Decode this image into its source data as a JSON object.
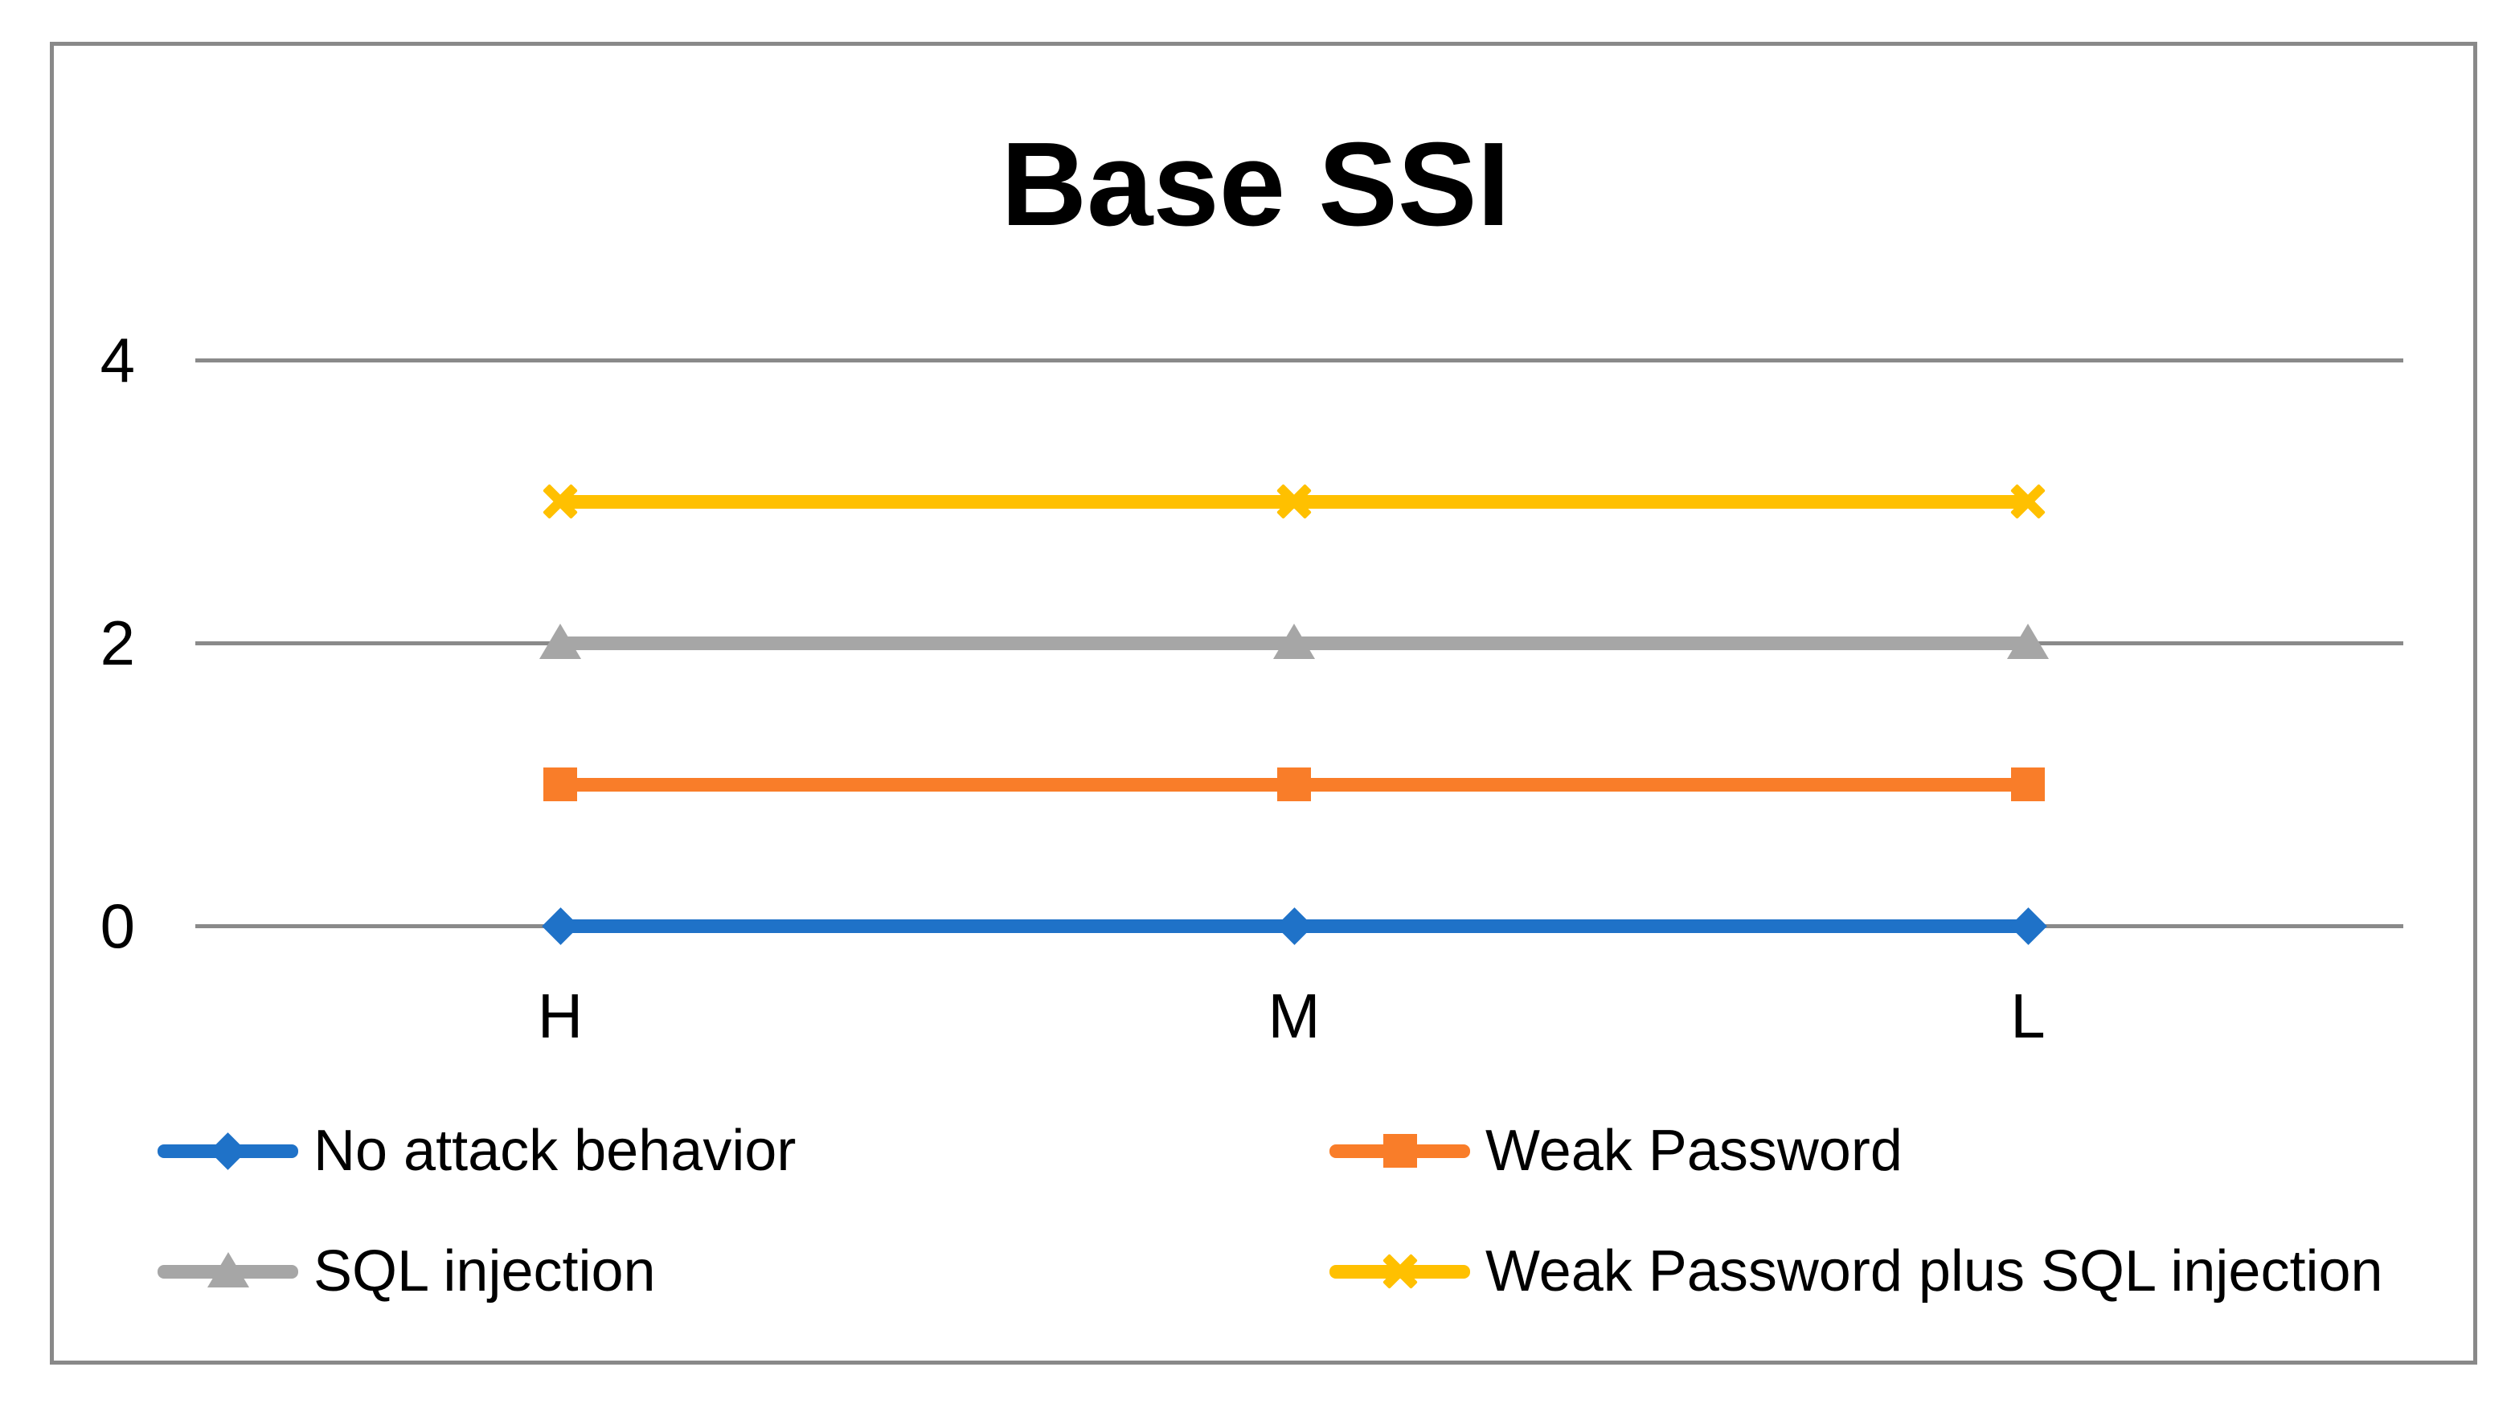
{
  "chart_data": {
    "type": "line",
    "title": "Base SSI",
    "categories": [
      "H",
      "M",
      "L"
    ],
    "series": [
      {
        "name": "No attack behavior",
        "values": [
          0,
          0,
          0
        ],
        "color": "#1F72C8",
        "marker": "diamond"
      },
      {
        "name": "Weak Password",
        "values": [
          1,
          1,
          1
        ],
        "color": "#F97D29",
        "marker": "square"
      },
      {
        "name": "SQL injection",
        "values": [
          2,
          2,
          2
        ],
        "color": "#A6A6A6",
        "marker": "triangle"
      },
      {
        "name": "Weak Password plus SQL injection",
        "values": [
          3,
          3,
          3
        ],
        "color": "#FFC000",
        "marker": "x"
      }
    ],
    "xlabel": "",
    "ylabel": "",
    "ylim": [
      0,
      4
    ],
    "yticks": [
      0,
      2,
      4
    ],
    "grid": true,
    "legend_position": "bottom",
    "gridline_color": "#8A8A8A",
    "frame_border_color": "#898989",
    "background_color": "#FFFFFF",
    "text_color": "#000000"
  }
}
